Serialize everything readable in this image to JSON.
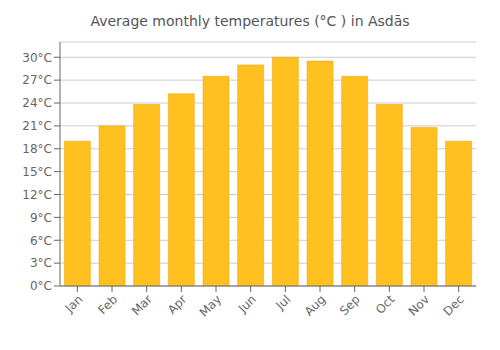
{
  "chart_data": {
    "type": "bar",
    "title": "Average monthly temperatures (°C ) in Asdās",
    "categories": [
      "Jan",
      "Feb",
      "Mar",
      "Apr",
      "May",
      "Jun",
      "Jul",
      "Aug",
      "Sep",
      "Oct",
      "Nov",
      "Dec"
    ],
    "values": [
      19.0,
      21.0,
      23.8,
      25.2,
      27.5,
      29.0,
      30.0,
      29.5,
      27.5,
      23.8,
      20.8,
      19.0
    ],
    "color": "#FFC020",
    "ylim": [
      0,
      32
    ],
    "yticks": [
      {
        "value": 0,
        "label": "0°C"
      },
      {
        "value": 3,
        "label": "3°C"
      },
      {
        "value": 6,
        "label": "6°C"
      },
      {
        "value": 9,
        "label": "9°C"
      },
      {
        "value": 12,
        "label": "12°C"
      },
      {
        "value": 15,
        "label": "15°C"
      },
      {
        "value": 18,
        "label": "18°C"
      },
      {
        "value": 21,
        "label": "21°C"
      },
      {
        "value": 24,
        "label": "24°C"
      },
      {
        "value": 27,
        "label": "27°C"
      },
      {
        "value": 30,
        "label": "30°C"
      }
    ],
    "grid": true
  }
}
